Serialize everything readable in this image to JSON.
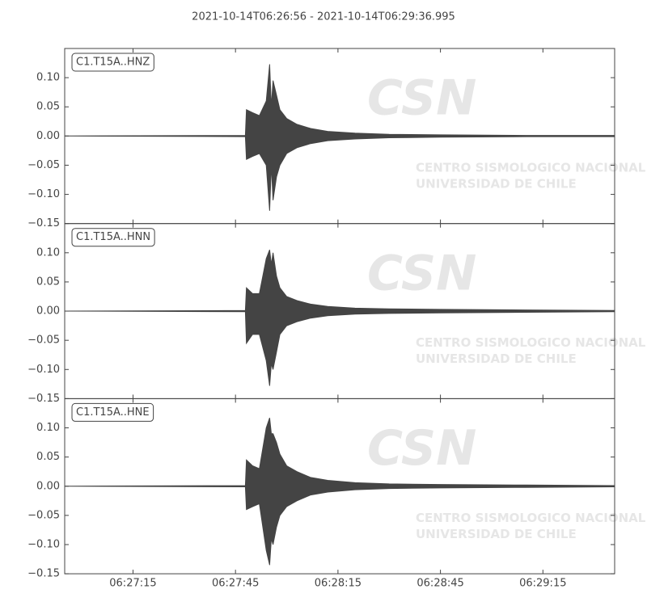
{
  "chart_data": {
    "type": "waveform",
    "title": "2021-10-14T06:26:56  -  2021-10-14T06:29:36.995",
    "x": [
      "06:26:55",
      "06:27:47.9",
      "06:27:48.2",
      "06:27:50",
      "06:27:52",
      "06:27:54",
      "06:27:55",
      "06:27:55.5",
      "06:27:56",
      "06:27:57",
      "06:27:58",
      "06:28:00",
      "06:28:03",
      "06:28:07",
      "06:28:12",
      "06:28:20",
      "06:28:30",
      "06:28:45",
      "06:29:10",
      "06:29:36"
    ],
    "xlim": [
      "06:26:55",
      "06:29:36"
    ],
    "xticks": [
      "06:27:15",
      "06:27:45",
      "06:28:15",
      "06:28:45",
      "06:29:15"
    ],
    "ylim": [
      -0.15,
      0.15
    ],
    "yticks": [
      {
        "value": -0.15,
        "label": "−0.15"
      },
      {
        "value": -0.1,
        "label": "−0.10"
      },
      {
        "value": -0.05,
        "label": "−0.05"
      },
      {
        "value": 0,
        "label": "0.00"
      },
      {
        "value": 0.05,
        "label": "0.05"
      },
      {
        "value": 0.1,
        "label": "0.10"
      }
    ],
    "watermark": [
      "CSN",
      "CENTRO SISMOLOGICO NACIONAL",
      "UNIVERSIDAD DE CHILE"
    ],
    "series": [
      {
        "name": "C1.T15A..HNZ",
        "color": "#444444",
        "upper": [
          0,
          0.001,
          0.045,
          0.04,
          0.035,
          0.06,
          0.123,
          0.05,
          0.095,
          0.07,
          0.045,
          0.03,
          0.02,
          0.013,
          0.008,
          0.005,
          0.003,
          0.002,
          0.001,
          0.001
        ],
        "lower": [
          0,
          -0.001,
          -0.04,
          -0.035,
          -0.03,
          -0.05,
          -0.128,
          -0.05,
          -0.11,
          -0.07,
          -0.05,
          -0.03,
          -0.02,
          -0.013,
          -0.008,
          -0.005,
          -0.003,
          -0.002,
          -0.001,
          -0.001
        ]
      },
      {
        "name": "C1.T15A..HNN",
        "color": "#444444",
        "upper": [
          0,
          0.001,
          0.04,
          0.03,
          0.03,
          0.09,
          0.105,
          0.08,
          0.1,
          0.06,
          0.04,
          0.025,
          0.018,
          0.012,
          0.008,
          0.005,
          0.004,
          0.003,
          0.002,
          0.001
        ],
        "lower": [
          0,
          -0.001,
          -0.055,
          -0.04,
          -0.04,
          -0.085,
          -0.128,
          -0.09,
          -0.1,
          -0.07,
          -0.04,
          -0.025,
          -0.018,
          -0.012,
          -0.008,
          -0.005,
          -0.004,
          -0.003,
          -0.002,
          -0.001
        ]
      },
      {
        "name": "C1.T15A..HNE",
        "color": "#444444",
        "upper": [
          0,
          0.001,
          0.045,
          0.035,
          0.03,
          0.1,
          0.117,
          0.09,
          0.09,
          0.075,
          0.055,
          0.035,
          0.025,
          0.015,
          0.01,
          0.006,
          0.004,
          0.003,
          0.002,
          0.001
        ],
        "lower": [
          0,
          -0.001,
          -0.04,
          -0.035,
          -0.03,
          -0.11,
          -0.135,
          -0.09,
          -0.1,
          -0.07,
          -0.05,
          -0.035,
          -0.025,
          -0.015,
          -0.01,
          -0.006,
          -0.004,
          -0.003,
          -0.002,
          -0.001
        ]
      }
    ]
  }
}
